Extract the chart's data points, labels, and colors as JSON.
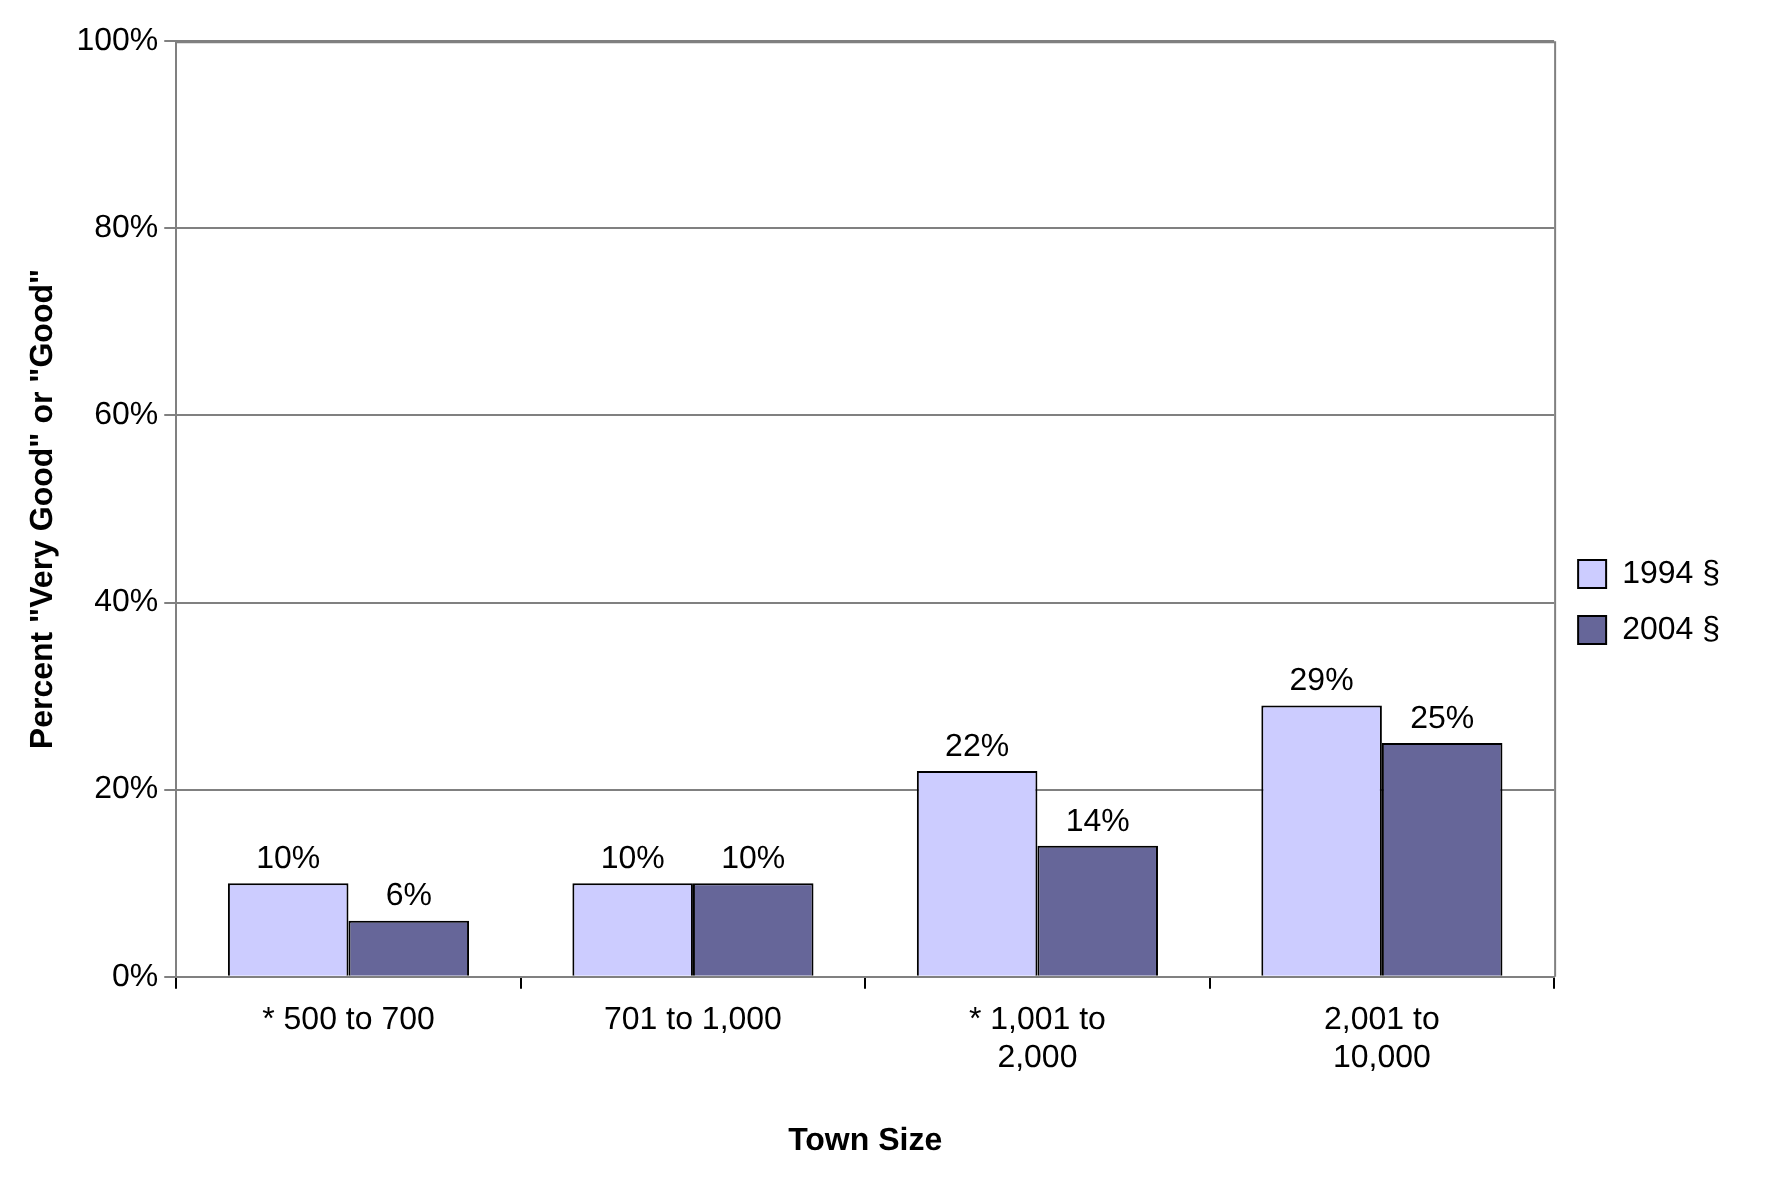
{
  "chart_data": {
    "type": "bar",
    "xlabel": "Town Size",
    "ylabel": "Percent \"Very Good\" or \"Good\"",
    "categories": [
      "* 500 to 700",
      "701 to 1,000",
      "* 1,001 to 2,000",
      "2,001 to 10,000"
    ],
    "series": [
      {
        "name": "1994 §",
        "color": "#ccccff",
        "values": [
          10,
          10,
          22,
          29
        ],
        "value_labels": [
          "10%",
          "10%",
          "22%",
          "29%"
        ]
      },
      {
        "name": "2004 §",
        "color": "#666699",
        "values": [
          6,
          10,
          14,
          25
        ],
        "value_labels": [
          "6%",
          "10%",
          "14%",
          "25%"
        ]
      }
    ],
    "ylim": [
      0,
      100
    ],
    "yticks": [
      {
        "value": 0,
        "label": "0%"
      },
      {
        "value": 20,
        "label": "20%"
      },
      {
        "value": 40,
        "label": "40%"
      },
      {
        "value": 60,
        "label": "60%"
      },
      {
        "value": 80,
        "label": "80%"
      },
      {
        "value": 100,
        "label": "100%"
      }
    ],
    "grid": "y",
    "legend": "right"
  }
}
